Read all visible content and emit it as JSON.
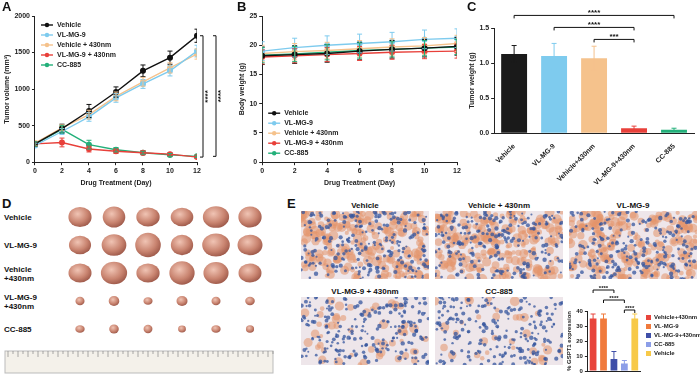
{
  "chart_data": [
    {
      "type": "line",
      "title": "A",
      "x": [
        0,
        2,
        4,
        6,
        8,
        10,
        12
      ],
      "xlim": [
        0,
        12
      ],
      "xticks": [
        0,
        2,
        4,
        6,
        8,
        10,
        12
      ],
      "ylim": [
        0,
        2000
      ],
      "yticks": [
        0,
        500,
        1000,
        1500,
        2000
      ],
      "x_label": "Drug Treatment (Day)",
      "y_label": "Tumor volume (mm³)",
      "legend": "upper left",
      "grid": false,
      "marker": "circle",
      "series": [
        {
          "name": "Vehicle",
          "color": "#111111",
          "values": [
            250,
            460,
            700,
            960,
            1250,
            1430,
            1730
          ],
          "errors": [
            30,
            60,
            90,
            70,
            80,
            90,
            90
          ]
        },
        {
          "name": "VL-MG-9",
          "color": "#7ecbee",
          "values": [
            230,
            420,
            620,
            880,
            1070,
            1250,
            1520
          ],
          "errors": [
            30,
            40,
            60,
            60,
            60,
            70,
            80
          ]
        },
        {
          "name": "Vehicle + 430nm",
          "color": "#f5c28c",
          "values": [
            260,
            470,
            650,
            900,
            1100,
            1290,
            1480
          ],
          "errors": [
            30,
            40,
            60,
            60,
            60,
            70,
            70
          ]
        },
        {
          "name": "VL-MG-9 + 430nm",
          "color": "#e8403a",
          "values": [
            250,
            270,
            180,
            150,
            130,
            110,
            70
          ],
          "errors": [
            30,
            60,
            40,
            30,
            30,
            20,
            15
          ]
        },
        {
          "name": "CC-885",
          "color": "#23b07a",
          "values": [
            250,
            450,
            240,
            170,
            130,
            100,
            80
          ],
          "errors": [
            30,
            50,
            60,
            30,
            20,
            20,
            15
          ]
        }
      ],
      "annotations": [
        {
          "from": "Vehicle",
          "to": "VL-MG-9 + 430nm",
          "label": "****"
        },
        {
          "from": "Vehicle",
          "to": "CC-885",
          "label": "****"
        }
      ]
    },
    {
      "type": "line",
      "title": "B",
      "x": [
        0,
        2,
        4,
        6,
        8,
        10,
        12
      ],
      "xlim": [
        0,
        12
      ],
      "xticks": [
        0,
        2,
        4,
        6,
        8,
        10,
        12
      ],
      "ylim": [
        0,
        25
      ],
      "yticks": [
        0,
        5,
        10,
        15,
        20,
        25
      ],
      "x_label": "Drug Treatment (Day)",
      "y_label": "Body weight (g)",
      "legend": "lower left",
      "grid": false,
      "marker": "circle",
      "series": [
        {
          "name": "Vehicle",
          "color": "#111111",
          "values": [
            18.2,
            18.4,
            18.6,
            19.0,
            19.3,
            19.5,
            19.8
          ],
          "errors": [
            1.5,
            1.5,
            1.5,
            1.5,
            1.5,
            1.5,
            1.5
          ]
        },
        {
          "name": "VL-MG-9",
          "color": "#7ecbee",
          "values": [
            19.0,
            19.6,
            20.0,
            20.3,
            20.6,
            21.0,
            21.2
          ],
          "errors": [
            1.6,
            1.6,
            1.6,
            1.6,
            1.6,
            1.6,
            1.6
          ]
        },
        {
          "name": "Vehicle + 430nm",
          "color": "#f5c28c",
          "values": [
            18.6,
            18.9,
            19.1,
            19.4,
            19.7,
            19.9,
            20.3
          ],
          "errors": [
            1.4,
            1.4,
            1.4,
            1.4,
            1.4,
            1.4,
            1.4
          ]
        },
        {
          "name": "VL-MG-9 + 430nm",
          "color": "#e8403a",
          "values": [
            18.0,
            18.2,
            18.4,
            18.6,
            18.8,
            18.9,
            19.0
          ],
          "errors": [
            1.2,
            1.2,
            1.2,
            1.2,
            1.2,
            1.2,
            1.2
          ]
        },
        {
          "name": "CC-885",
          "color": "#23b07a",
          "values": [
            18.3,
            18.5,
            18.8,
            19.1,
            19.3,
            19.5,
            19.7
          ],
          "errors": [
            1.3,
            1.3,
            1.3,
            1.3,
            1.3,
            1.3,
            1.3
          ]
        }
      ]
    },
    {
      "type": "bar",
      "title": "C",
      "categories": [
        "Vehicle",
        "VL-MG-9",
        "Vehicle+430nm",
        "VL-MG-9+430nm",
        "CC-885"
      ],
      "values": [
        1.13,
        1.1,
        1.07,
        0.07,
        0.05
      ],
      "errors": [
        0.12,
        0.18,
        0.17,
        0.03,
        0.02
      ],
      "colors": [
        "#1a1a1a",
        "#7ecbee",
        "#f5c28c",
        "#e8403a",
        "#23b07a"
      ],
      "ylim": [
        0,
        1.5
      ],
      "yticks": [
        {
          "value": 0,
          "label": "0.0"
        },
        0.5,
        {
          "value": 1,
          "label": "1.0"
        },
        1.5
      ],
      "y_label": "Tumor weight (g)",
      "grid": false,
      "annotations": [
        {
          "from": "Vehicle",
          "to": "CC-885",
          "label": "****"
        },
        {
          "from": "VL-MG-9",
          "to": "VL-MG-9+430nm",
          "label": "****"
        },
        {
          "from": "Vehicle+430nm",
          "to": "VL-MG-9+430nm",
          "label": "***"
        }
      ]
    },
    {
      "type": "bar",
      "categories": [
        "Vehicle+430nm",
        "VL-MG-9",
        "VL-MG-9+430nm",
        "CC-885",
        "Vehicle"
      ],
      "values": [
        35,
        35,
        8,
        5,
        35
      ],
      "errors": [
        3,
        3,
        5,
        2,
        3
      ],
      "colors": [
        "#e8453c",
        "#f07a3c",
        "#3f4fa8",
        "#8c9ee8",
        "#f7c948"
      ],
      "ylim": [
        0,
        40
      ],
      "yticks": [
        0,
        10,
        20,
        30,
        40
      ],
      "y_label": "% GSPT1 expression",
      "grid": false,
      "legend": "right",
      "tick_labels": "y",
      "annotations": [
        {
          "from": "Vehicle+430nm",
          "to": "VL-MG-9+430nm",
          "label": "****"
        },
        {
          "from": "VL-MG-9",
          "to": "CC-885",
          "label": "****"
        },
        {
          "from": "CC-885",
          "to": "Vehicle",
          "label": "****"
        }
      ]
    }
  ],
  "figure": {
    "D": {
      "title": "D",
      "rows": [
        [
          "Vehicle"
        ],
        [
          "VL-MG-9"
        ],
        [
          "Vehicle",
          "+430nm"
        ],
        [
          "VL-MG-9",
          "+430nm"
        ],
        [
          "CC-885"
        ]
      ]
    },
    "E": {
      "title": "E",
      "images": [
        "Vehicle",
        "Vehicle + 430nm",
        "VL-MG-9",
        "VL-MG-9 + 430nm",
        "CC-885"
      ]
    }
  }
}
